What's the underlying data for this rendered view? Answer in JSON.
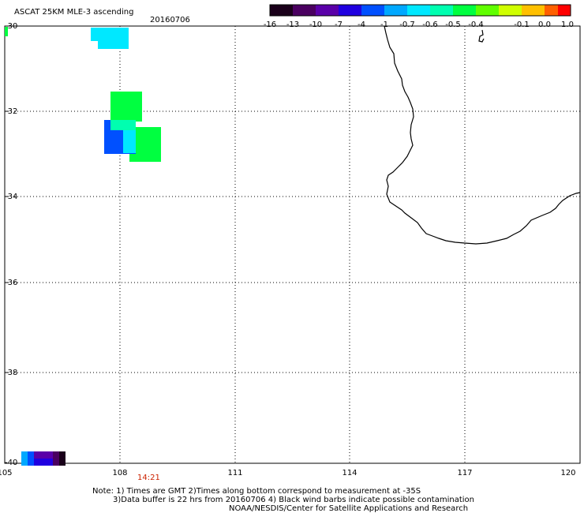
{
  "header": {
    "title": "ASCAT 25KM MLE-3 ascending",
    "date": "20160706"
  },
  "colorbar": {
    "labels": [
      "-16",
      "-13",
      "-10",
      "-7",
      "-4",
      "-1",
      "-0.7",
      "-0.6",
      "-0.5",
      "-0.4",
      "-0.1",
      "0.0",
      "1.0"
    ],
    "colors": [
      "#1a001a",
      "#4a0060",
      "#5a00a8",
      "#2000e0",
      "#0050ff",
      "#00a8ff",
      "#00e8ff",
      "#00ffb0",
      "#00ff40",
      "#60ff00",
      "#d0ff00",
      "#ffc000",
      "#ff6000",
      "#ff0000"
    ]
  },
  "axes": {
    "lat_labels": [
      "-30",
      "-32",
      "-34",
      "-36",
      "-38",
      "-40"
    ],
    "lon_labels": [
      "105",
      "108",
      "111",
      "114",
      "117",
      "120"
    ]
  },
  "time_label": "14:21",
  "notes": [
    "Note: 1) Times are GMT 2)Times along bottom correspond to measurement at -35S",
    "3)Data buffer is 22 hrs from 20160706 4) Black wind barbs indicate possible contamination",
    "NOAA/NESDIS/Center for Satellite Applications and Research"
  ],
  "data_cells": [
    {
      "color": "#00e8ff",
      "value": "-1"
    },
    {
      "color": "#00ff40",
      "value": "-0.5"
    },
    {
      "color": "#0050ff",
      "value": "-4"
    },
    {
      "color": "#00ffb0",
      "value": "-0.6"
    },
    {
      "color": "#5a00a8",
      "value": "-10"
    }
  ]
}
